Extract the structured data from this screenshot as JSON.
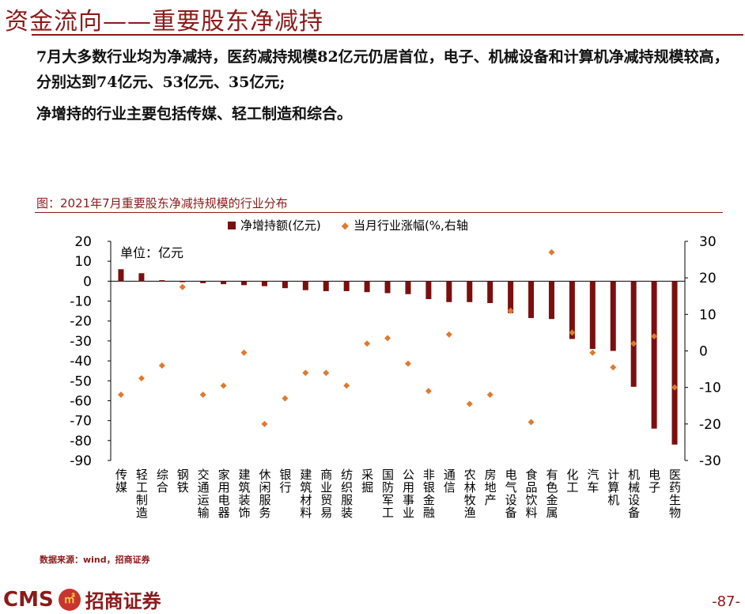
{
  "page": {
    "title": "资金流向——重要股东净减持",
    "paragraph1": "7月大多数行业均为净减持，医药减持规模82亿元仍居首位，电子、机械设备和计算机净减持规模较高，分别达到74亿元、53亿元、35亿元;",
    "paragraph2": "净增持的行业主要包括传媒、轻工制造和综合。",
    "caption": "图：2021年7月重要股东净减持规模的行业分布",
    "unit": "单位：亿元",
    "source": "数据来源：wind，招商证券",
    "logo_en": "CMS",
    "logo_cn": "招商证券",
    "page_number": "-87-"
  },
  "chart_data": {
    "type": "bar",
    "title": "图：2021年7月重要股东净减持规模的行业分布",
    "categories": [
      "传媒",
      "轻工制造",
      "综合",
      "钢铁",
      "交通运输",
      "家用电器",
      "建筑装饰",
      "休闲服务",
      "银行",
      "建筑材料",
      "商业贸易",
      "纺织服装",
      "采掘",
      "国防军工",
      "公用事业",
      "非银金融",
      "通信",
      "农林牧渔",
      "房地产",
      "电气设备",
      "食品饮料",
      "有色金属",
      "化工",
      "汽车",
      "计算机",
      "机械设备",
      "电子",
      "医药生物"
    ],
    "series": [
      {
        "name": "净增持额(亿元)",
        "type": "bar",
        "axis": "left",
        "color": "#7b0f0f",
        "values": [
          6,
          4,
          0.5,
          -0.5,
          -1,
          -1.5,
          -2,
          -2.5,
          -3.5,
          -4.5,
          -5,
          -5,
          -5.5,
          -6,
          -6.5,
          -9,
          -10.5,
          -10.5,
          -11,
          -16,
          -18.5,
          -19,
          -29,
          -34,
          -35,
          -53,
          -74,
          -82
        ]
      },
      {
        "name": "当月行业涨幅(%,右轴",
        "type": "scatter",
        "axis": "right",
        "color": "#e07a2e",
        "values": [
          -12,
          -7.5,
          -4,
          17.5,
          -12,
          -9.5,
          -0.5,
          -20,
          -13,
          -6,
          -6,
          -9.5,
          2,
          3.5,
          -3.5,
          -11,
          4.5,
          -14.5,
          -12,
          11,
          -19.5,
          27,
          5,
          -0.5,
          -4.5,
          2,
          4,
          -10
        ]
      }
    ],
    "yaxis_left": {
      "min": -90,
      "max": 20,
      "ticks": [
        20,
        10,
        0,
        -10,
        -20,
        -30,
        -40,
        -50,
        -60,
        -70,
        -80,
        -90
      ]
    },
    "yaxis_right": {
      "min": -30,
      "max": 30,
      "ticks": [
        30,
        20,
        10,
        0,
        -10,
        -20,
        -30
      ]
    },
    "legend_placement": "top-center",
    "grid": false
  }
}
